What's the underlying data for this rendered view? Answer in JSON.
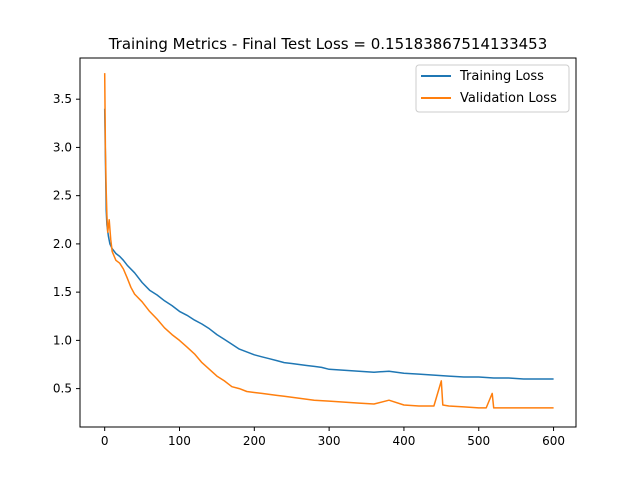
{
  "chart_data": {
    "type": "line",
    "title": "Training Metrics - Final Test Loss = 0.15183867514133453",
    "xlabel": "",
    "ylabel": "",
    "xlim": [
      -33,
      630
    ],
    "ylim": [
      0.102,
      3.927
    ],
    "x_ticks": [
      0,
      100,
      200,
      300,
      400,
      500,
      600
    ],
    "y_ticks": [
      0.5,
      1.0,
      1.5,
      2.0,
      2.5,
      3.0,
      3.5
    ],
    "grid": false,
    "legend": "top-right",
    "series": [
      {
        "name": "Training Loss",
        "color": "#1f77b4",
        "points": [
          [
            0,
            3.4
          ],
          [
            1,
            2.9
          ],
          [
            2,
            2.35
          ],
          [
            3,
            2.2
          ],
          [
            5,
            2.08
          ],
          [
            7,
            2.0
          ],
          [
            10,
            1.95
          ],
          [
            15,
            1.9
          ],
          [
            20,
            1.87
          ],
          [
            25,
            1.83
          ],
          [
            30,
            1.78
          ],
          [
            40,
            1.7
          ],
          [
            50,
            1.6
          ],
          [
            60,
            1.52
          ],
          [
            70,
            1.47
          ],
          [
            80,
            1.41
          ],
          [
            90,
            1.36
          ],
          [
            100,
            1.3
          ],
          [
            110,
            1.26
          ],
          [
            120,
            1.21
          ],
          [
            130,
            1.17
          ],
          [
            140,
            1.12
          ],
          [
            150,
            1.06
          ],
          [
            160,
            1.01
          ],
          [
            170,
            0.96
          ],
          [
            180,
            0.91
          ],
          [
            190,
            0.88
          ],
          [
            200,
            0.85
          ],
          [
            210,
            0.83
          ],
          [
            220,
            0.81
          ],
          [
            230,
            0.79
          ],
          [
            240,
            0.77
          ],
          [
            250,
            0.76
          ],
          [
            260,
            0.75
          ],
          [
            270,
            0.74
          ],
          [
            280,
            0.73
          ],
          [
            290,
            0.72
          ],
          [
            300,
            0.7
          ],
          [
            320,
            0.69
          ],
          [
            340,
            0.68
          ],
          [
            360,
            0.67
          ],
          [
            380,
            0.68
          ],
          [
            400,
            0.66
          ],
          [
            420,
            0.65
          ],
          [
            440,
            0.64
          ],
          [
            460,
            0.63
          ],
          [
            480,
            0.62
          ],
          [
            500,
            0.62
          ],
          [
            520,
            0.61
          ],
          [
            540,
            0.61
          ],
          [
            560,
            0.6
          ],
          [
            580,
            0.6
          ],
          [
            600,
            0.6
          ]
        ]
      },
      {
        "name": "Validation Loss",
        "color": "#ff7f0e",
        "points": [
          [
            0,
            3.77
          ],
          [
            1,
            3.0
          ],
          [
            2,
            2.55
          ],
          [
            3,
            2.3
          ],
          [
            4,
            2.12
          ],
          [
            5,
            2.18
          ],
          [
            6,
            2.25
          ],
          [
            8,
            2.05
          ],
          [
            10,
            1.92
          ],
          [
            15,
            1.83
          ],
          [
            20,
            1.8
          ],
          [
            25,
            1.74
          ],
          [
            30,
            1.65
          ],
          [
            35,
            1.55
          ],
          [
            40,
            1.48
          ],
          [
            50,
            1.4
          ],
          [
            60,
            1.3
          ],
          [
            70,
            1.22
          ],
          [
            80,
            1.13
          ],
          [
            90,
            1.06
          ],
          [
            100,
            1.0
          ],
          [
            110,
            0.93
          ],
          [
            120,
            0.86
          ],
          [
            130,
            0.77
          ],
          [
            140,
            0.7
          ],
          [
            150,
            0.63
          ],
          [
            160,
            0.58
          ],
          [
            170,
            0.52
          ],
          [
            180,
            0.5
          ],
          [
            190,
            0.47
          ],
          [
            200,
            0.46
          ],
          [
            210,
            0.45
          ],
          [
            220,
            0.44
          ],
          [
            230,
            0.43
          ],
          [
            240,
            0.42
          ],
          [
            250,
            0.41
          ],
          [
            260,
            0.4
          ],
          [
            270,
            0.39
          ],
          [
            280,
            0.38
          ],
          [
            300,
            0.37
          ],
          [
            320,
            0.36
          ],
          [
            340,
            0.35
          ],
          [
            360,
            0.34
          ],
          [
            380,
            0.38
          ],
          [
            400,
            0.33
          ],
          [
            420,
            0.32
          ],
          [
            440,
            0.32
          ],
          [
            450,
            0.58
          ],
          [
            452,
            0.33
          ],
          [
            460,
            0.32
          ],
          [
            480,
            0.31
          ],
          [
            500,
            0.3
          ],
          [
            510,
            0.3
          ],
          [
            518,
            0.45
          ],
          [
            520,
            0.3
          ],
          [
            540,
            0.3
          ],
          [
            560,
            0.3
          ],
          [
            580,
            0.3
          ],
          [
            600,
            0.3
          ]
        ]
      }
    ]
  }
}
